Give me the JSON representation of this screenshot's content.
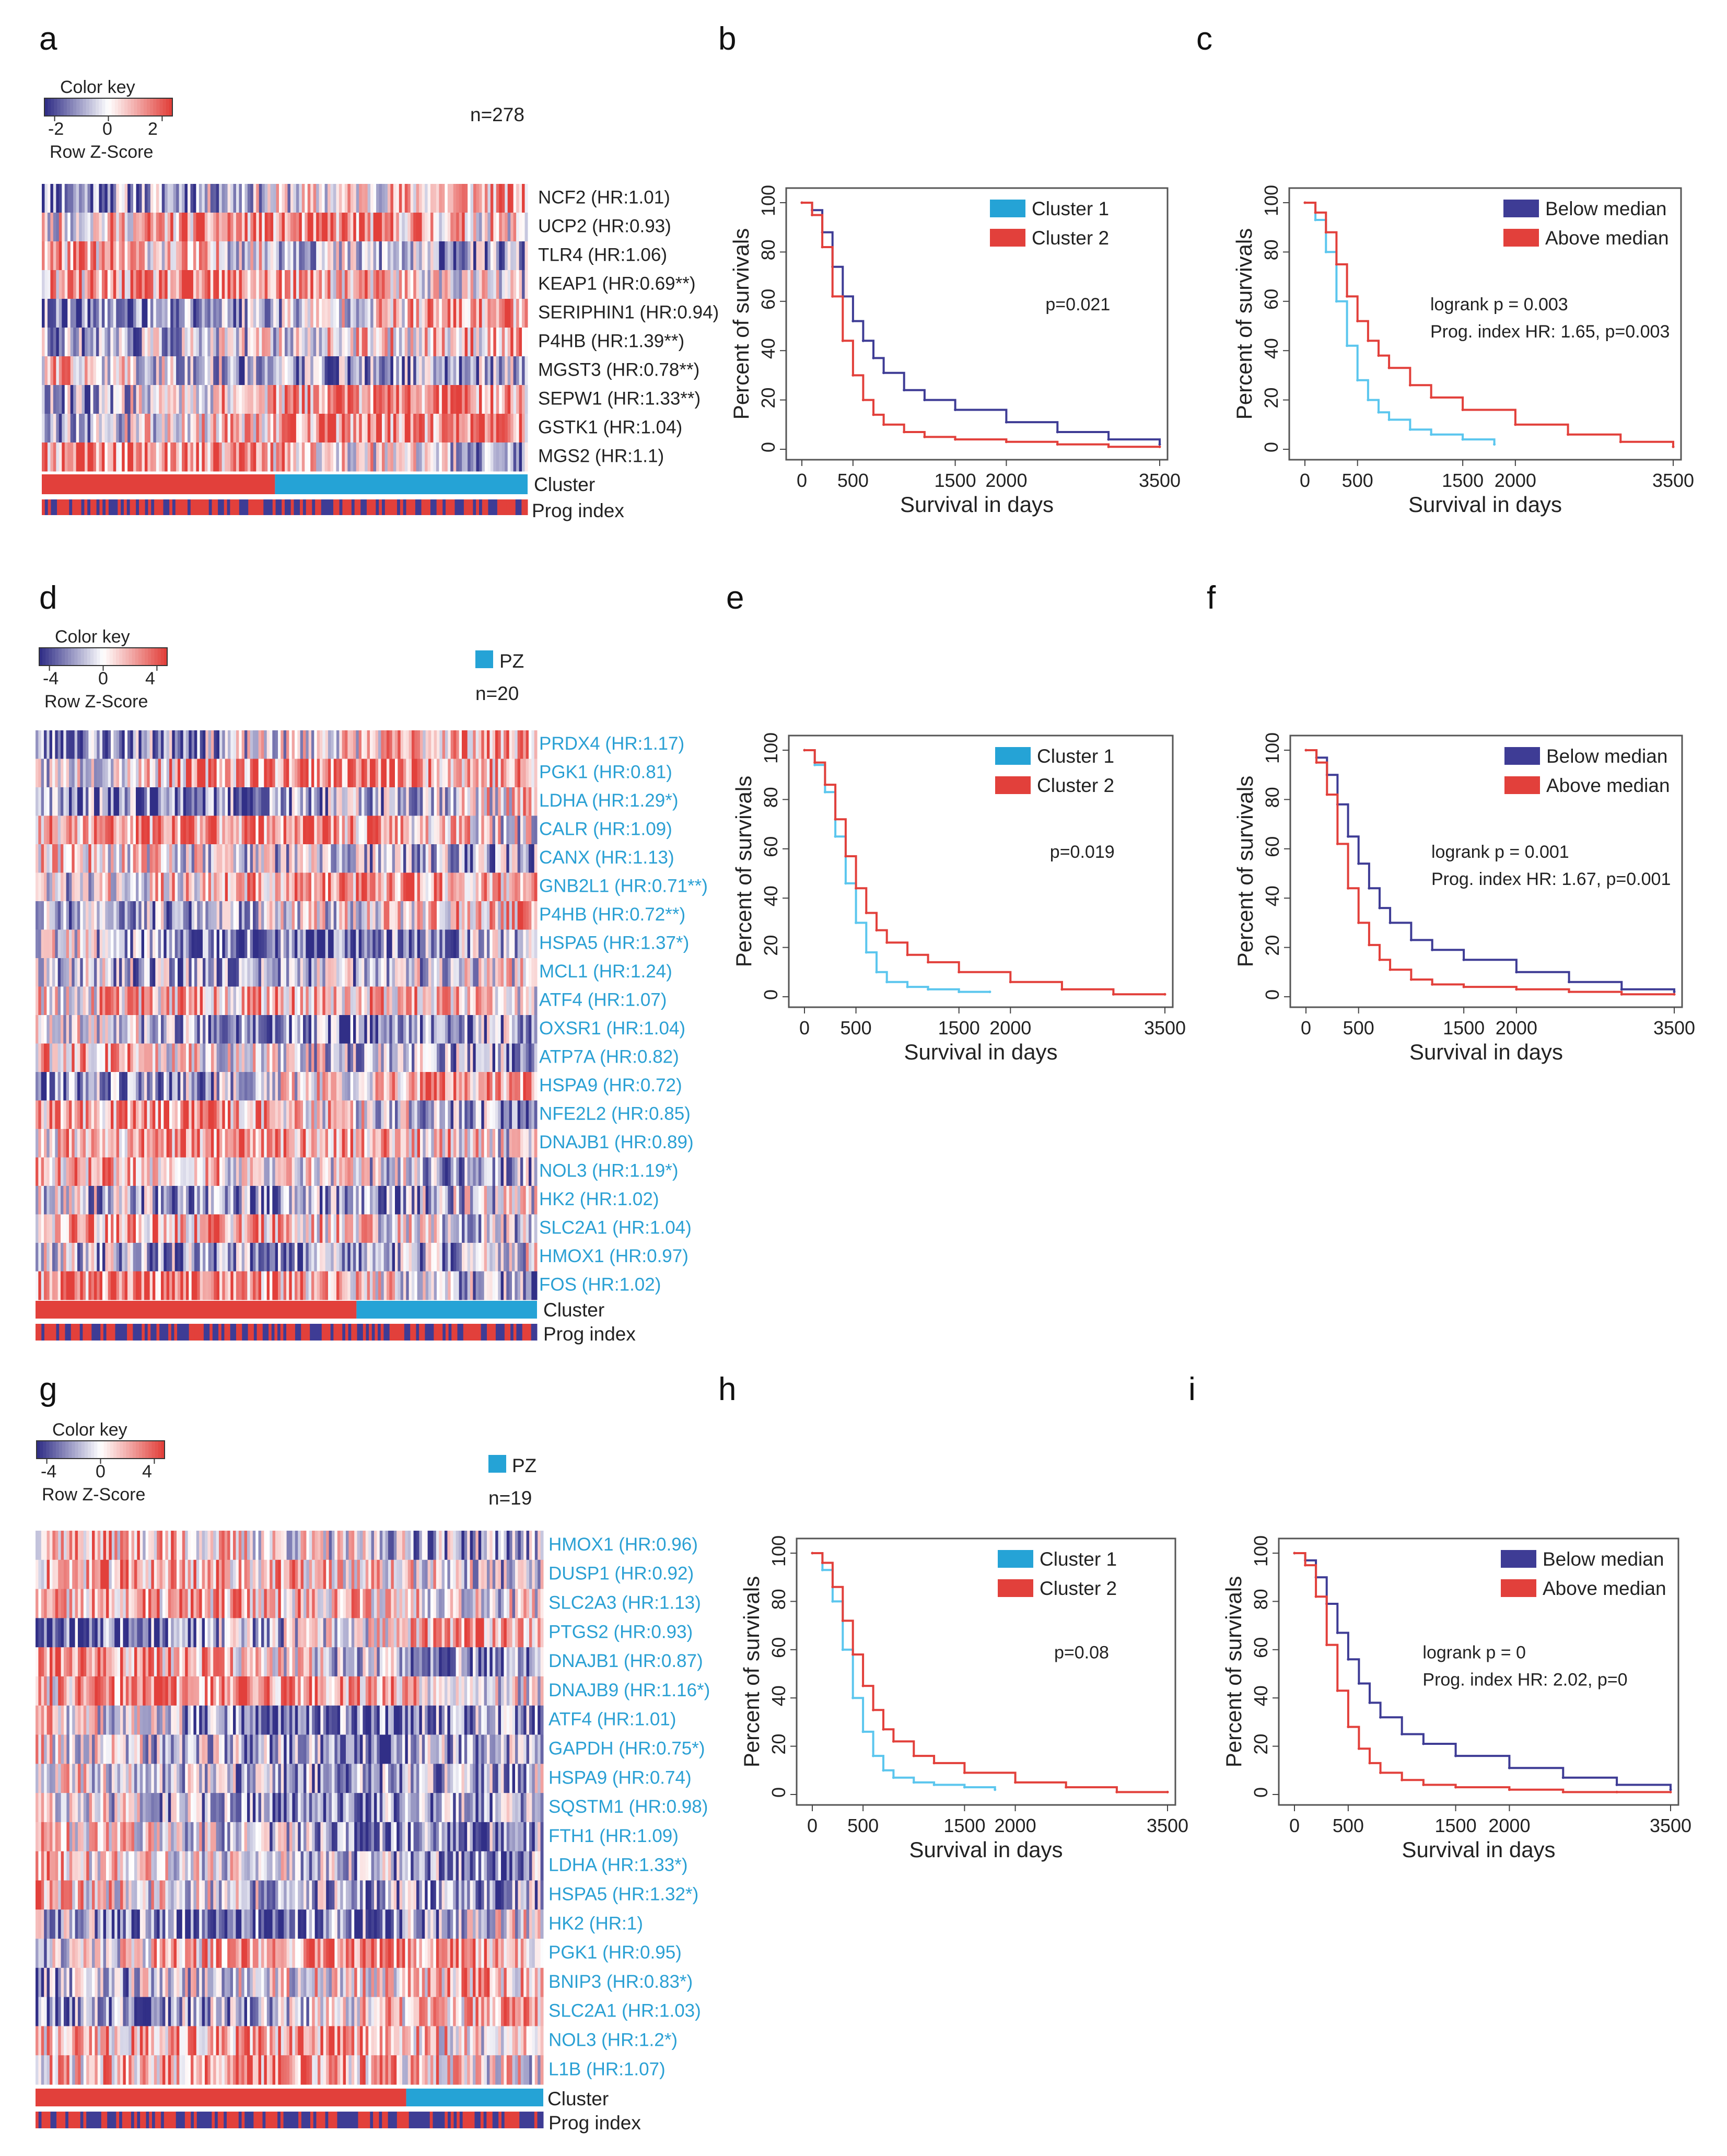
{
  "colors": {
    "red": "#e2403b",
    "blue": "#3e3c95",
    "cyan": "#25a3d6",
    "light_cyan": "#5bc6ee",
    "gene_cyan": "#2aa0d4",
    "text": "#222222"
  },
  "panels": [
    {
      "letter": "a"
    },
    {
      "letter": "b"
    },
    {
      "letter": "c"
    },
    {
      "letter": "d"
    },
    {
      "letter": "e"
    },
    {
      "letter": "f"
    },
    {
      "letter": "g"
    },
    {
      "letter": "h"
    },
    {
      "letter": "i"
    }
  ],
  "heatmaps": [
    {
      "id": "a",
      "color_key": {
        "title": "Color key",
        "ticks": [
          "-2",
          "0",
          "2"
        ],
        "range": [
          -2,
          2
        ],
        "subtitle": "Row Z-Score"
      },
      "group_label": null,
      "n_label": "n=278",
      "gene_color": "#222222",
      "genes": [
        "NCF2 (HR:1.01)",
        "UCP2 (HR:0.93)",
        "TLR4 (HR:1.06)",
        "KEAP1 (HR:0.69**)",
        "SERIPHIN1 (HR:0.94)",
        "P4HB (HR:1.39**)",
        "MGST3 (HR:0.78**)",
        "SEPW1 (HR:1.33**)",
        "GSTK1 (HR:1.04)",
        "MGS2 (HR:1.1)"
      ],
      "cluster_split": 0.48,
      "cluster_label": "Cluster",
      "prog_label": "Prog index"
    },
    {
      "id": "d",
      "color_key": {
        "title": "Color key",
        "ticks": [
          "-4",
          "0",
          "4"
        ],
        "range": [
          -4,
          4
        ],
        "subtitle": "Row Z-Score"
      },
      "group_label": "PZ",
      "n_label": "n=20",
      "gene_color": "#2aa0d4",
      "genes": [
        "PRDX4 (HR:1.17)",
        "PGK1 (HR:0.81)",
        "LDHA (HR:1.29*)",
        "CALR (HR:1.09)",
        "CANX (HR:1.13)",
        "GNB2L1 (HR:0.71**)",
        "P4HB (HR:0.72**)",
        "HSPA5 (HR:1.37*)",
        "MCL1 (HR:1.24)",
        "ATF4 (HR:1.07)",
        "OXSR1 (HR:1.04)",
        "ATP7A (HR:0.82)",
        "HSPA9 (HR:0.72)",
        "NFE2L2 (HR:0.85)",
        "DNAJB1 (HR:0.89)",
        "NOL3 (HR:1.19*)",
        "HK2 (HR:1.02)",
        "SLC2A1 (HR:1.04)",
        "HMOX1 (HR:0.97)",
        "FOS (HR:1.02)"
      ],
      "cluster_split": 0.64,
      "cluster_label": "Cluster",
      "prog_label": "Prog index"
    },
    {
      "id": "g",
      "color_key": {
        "title": "Color key",
        "ticks": [
          "-4",
          "0",
          "4"
        ],
        "range": [
          -4,
          4
        ],
        "subtitle": "Row Z-Score"
      },
      "group_label": "PZ",
      "n_label": "n=19",
      "gene_color": "#2aa0d4",
      "genes": [
        "HMOX1 (HR:0.96)",
        "DUSP1 (HR:0.92)",
        "SLC2A3 (HR:1.13)",
        "PTGS2 (HR:0.93)",
        "DNAJB1 (HR:0.87)",
        "DNAJB9 (HR:1.16*)",
        "ATF4 (HR:1.01)",
        "GAPDH (HR:0.75*)",
        "HSPA9 (HR:0.74)",
        "SQSTM1 (HR:0.98)",
        "FTH1 (HR:1.09)",
        "LDHA (HR:1.33*)",
        "HSPA5 (HR:1.32*)",
        "HK2 (HR:1)",
        "PGK1 (HR:0.95)",
        "BNIP3 (HR:0.83*)",
        "SLC2A1 (HR:1.03)",
        "NOL3 (HR:1.2*)",
        "L1B (HR:1.07)"
      ],
      "cluster_split": 0.73,
      "cluster_label": "Cluster",
      "prog_label": "Prog index"
    }
  ],
  "chart_data": [
    {
      "id": "b",
      "type": "line",
      "xlabel": "Survival in days",
      "ylabel": "Percent of survivals",
      "xticks": [
        0,
        500,
        1500,
        2000,
        3500
      ],
      "yticks": [
        0,
        20,
        40,
        60,
        80,
        100
      ],
      "xlim": [
        0,
        3500
      ],
      "ylim": [
        0,
        100
      ],
      "legend": "top-right",
      "stat": [
        "p=0.021"
      ],
      "series": [
        {
          "name": "Cluster 1",
          "color": "#3e3c95",
          "legend_color": "#25a3d6",
          "x": [
            0,
            100,
            200,
            300,
            400,
            500,
            600,
            700,
            800,
            1000,
            1200,
            1500,
            2000,
            2500,
            3000,
            3500
          ],
          "y": [
            100,
            97,
            88,
            74,
            62,
            52,
            44,
            37,
            31,
            24,
            20,
            16,
            11,
            7,
            4,
            2
          ]
        },
        {
          "name": "Cluster 2",
          "color": "#e2403b",
          "legend_color": "#e2403b",
          "x": [
            0,
            100,
            200,
            300,
            400,
            500,
            600,
            700,
            800,
            1000,
            1200,
            1500,
            2000,
            2500,
            3000,
            3500
          ],
          "y": [
            100,
            95,
            82,
            62,
            44,
            30,
            20,
            14,
            10,
            7,
            5,
            4,
            3,
            2,
            1,
            1
          ]
        }
      ]
    },
    {
      "id": "c",
      "type": "line",
      "xlabel": "Survival in days",
      "ylabel": "Percent of survivals",
      "xticks": [
        0,
        500,
        1500,
        2000,
        3500
      ],
      "yticks": [
        0,
        20,
        40,
        60,
        80,
        100
      ],
      "xlim": [
        0,
        3500
      ],
      "ylim": [
        0,
        100
      ],
      "legend": "top-right",
      "stat": [
        "logrank p = 0.003",
        "Prog. index HR: 1.65, p=0.003"
      ],
      "series": [
        {
          "name": "Below median",
          "color": "#5bc6ee",
          "legend_color": "#3e3c95",
          "x": [
            0,
            100,
            200,
            300,
            400,
            500,
            600,
            700,
            800,
            1000,
            1200,
            1500,
            1800
          ],
          "y": [
            100,
            93,
            80,
            60,
            42,
            28,
            20,
            15,
            12,
            8,
            6,
            4,
            2
          ]
        },
        {
          "name": "Above median",
          "color": "#e2403b",
          "legend_color": "#e2403b",
          "x": [
            0,
            100,
            200,
            300,
            400,
            500,
            600,
            700,
            800,
            1000,
            1200,
            1500,
            2000,
            2500,
            3000,
            3500
          ],
          "y": [
            100,
            96,
            88,
            75,
            62,
            52,
            44,
            38,
            33,
            26,
            21,
            16,
            10,
            6,
            3,
            1
          ]
        }
      ]
    },
    {
      "id": "e",
      "type": "line",
      "xlabel": "Survival in days",
      "ylabel": "Percent of survivals",
      "xticks": [
        0,
        500,
        1500,
        2000,
        3500
      ],
      "yticks": [
        0,
        20,
        40,
        60,
        80,
        100
      ],
      "xlim": [
        0,
        3500
      ],
      "ylim": [
        0,
        100
      ],
      "legend": "top-right",
      "stat": [
        "p=0.019"
      ],
      "series": [
        {
          "name": "Cluster 1",
          "color": "#5bc6ee",
          "legend_color": "#25a3d6",
          "x": [
            0,
            100,
            200,
            300,
            400,
            500,
            600,
            700,
            800,
            1000,
            1200,
            1500,
            1800
          ],
          "y": [
            100,
            94,
            83,
            65,
            46,
            30,
            18,
            10,
            6,
            4,
            3,
            2,
            2
          ]
        },
        {
          "name": "Cluster 2",
          "color": "#e2403b",
          "legend_color": "#e2403b",
          "x": [
            0,
            100,
            200,
            300,
            400,
            500,
            600,
            700,
            800,
            1000,
            1200,
            1500,
            2000,
            2500,
            3000,
            3500
          ],
          "y": [
            100,
            95,
            86,
            72,
            57,
            44,
            34,
            27,
            22,
            17,
            14,
            10,
            6,
            3,
            1,
            1
          ]
        }
      ]
    },
    {
      "id": "f",
      "type": "line",
      "xlabel": "Survival in days",
      "ylabel": "Percent of survivals",
      "xticks": [
        0,
        500,
        1500,
        2000,
        3500
      ],
      "yticks": [
        0,
        20,
        40,
        60,
        80,
        100
      ],
      "xlim": [
        0,
        3500
      ],
      "ylim": [
        0,
        100
      ],
      "legend": "top-right",
      "stat": [
        "logrank p = 0.001",
        "Prog. index HR: 1.67, p=0.001"
      ],
      "series": [
        {
          "name": "Below median",
          "color": "#3e3c95",
          "legend_color": "#3e3c95",
          "x": [
            0,
            100,
            200,
            300,
            400,
            500,
            600,
            700,
            800,
            1000,
            1200,
            1500,
            2000,
            2500,
            3000,
            3500
          ],
          "y": [
            100,
            97,
            90,
            78,
            65,
            54,
            44,
            36,
            30,
            23,
            19,
            15,
            10,
            6,
            3,
            2
          ]
        },
        {
          "name": "Above median",
          "color": "#e2403b",
          "legend_color": "#e2403b",
          "x": [
            0,
            100,
            200,
            300,
            400,
            500,
            600,
            700,
            800,
            1000,
            1200,
            1500,
            2000,
            2500,
            3000,
            3500
          ],
          "y": [
            100,
            95,
            82,
            62,
            44,
            30,
            21,
            15,
            11,
            7,
            5,
            4,
            3,
            2,
            1,
            1
          ]
        }
      ]
    },
    {
      "id": "h",
      "type": "line",
      "xlabel": "Survival in days",
      "ylabel": "Percent of survivals",
      "xticks": [
        0,
        500,
        1500,
        2000,
        3500
      ],
      "yticks": [
        0,
        20,
        40,
        60,
        80,
        100
      ],
      "xlim": [
        0,
        3500
      ],
      "ylim": [
        0,
        100
      ],
      "legend": "top-right",
      "stat": [
        "p=0.08"
      ],
      "series": [
        {
          "name": "Cluster 1",
          "color": "#5bc6ee",
          "legend_color": "#25a3d6",
          "x": [
            0,
            100,
            200,
            300,
            400,
            500,
            600,
            700,
            800,
            1000,
            1200,
            1500,
            1800
          ],
          "y": [
            100,
            93,
            80,
            60,
            40,
            26,
            16,
            10,
            7,
            5,
            4,
            3,
            2
          ]
        },
        {
          "name": "Cluster 2",
          "color": "#e2403b",
          "legend_color": "#e2403b",
          "x": [
            0,
            100,
            200,
            300,
            400,
            500,
            600,
            700,
            800,
            1000,
            1200,
            1500,
            2000,
            2500,
            3000,
            3500
          ],
          "y": [
            100,
            96,
            86,
            72,
            58,
            45,
            35,
            27,
            22,
            16,
            13,
            9,
            5,
            3,
            1,
            1
          ]
        }
      ]
    },
    {
      "id": "i",
      "type": "line",
      "xlabel": "Survival in days",
      "ylabel": "Percent of survivals",
      "xticks": [
        0,
        500,
        1500,
        2000,
        3500
      ],
      "yticks": [
        0,
        20,
        40,
        60,
        80,
        100
      ],
      "xlim": [
        0,
        3500
      ],
      "ylim": [
        0,
        100
      ],
      "legend": "top-right",
      "stat": [
        "logrank p = 0",
        "Prog. index HR: 2.02, p=0"
      ],
      "series": [
        {
          "name": "Below median",
          "color": "#3e3c95",
          "legend_color": "#3e3c95",
          "x": [
            0,
            100,
            200,
            300,
            400,
            500,
            600,
            700,
            800,
            1000,
            1200,
            1500,
            2000,
            2500,
            3000,
            3500
          ],
          "y": [
            100,
            97,
            90,
            79,
            67,
            56,
            46,
            38,
            32,
            25,
            21,
            16,
            11,
            7,
            4,
            2
          ]
        },
        {
          "name": "Above median",
          "color": "#e2403b",
          "legend_color": "#e2403b",
          "x": [
            0,
            100,
            200,
            300,
            400,
            500,
            600,
            700,
            800,
            1000,
            1200,
            1500,
            2000,
            2500,
            3000,
            3500
          ],
          "y": [
            100,
            95,
            82,
            62,
            43,
            28,
            19,
            13,
            9,
            6,
            4,
            3,
            2,
            1,
            1,
            1
          ]
        }
      ]
    }
  ]
}
